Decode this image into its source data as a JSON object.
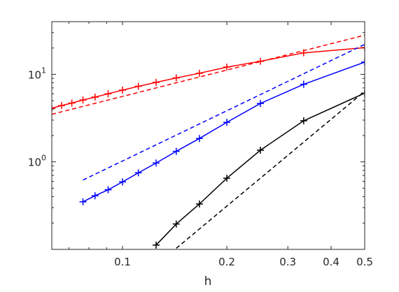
{
  "chart_data": {
    "type": "line",
    "title": "",
    "xlabel": "h",
    "ylabel": "",
    "xscale": "log",
    "yscale": "log",
    "xlim": [
      0.0625,
      0.5
    ],
    "ylim": [
      0.1,
      40
    ],
    "grid": false,
    "legend": "none",
    "x_ticks": [
      {
        "value": 0.1,
        "label": "0.1"
      },
      {
        "value": 0.2,
        "label": "0.2"
      },
      {
        "value": 0.3,
        "label": "0.3"
      },
      {
        "value": 0.4,
        "label": "0.4"
      },
      {
        "value": 0.5,
        "label": "0.5"
      }
    ],
    "y_ticks": [
      {
        "value": 1,
        "base": "10",
        "exp": "0"
      },
      {
        "value": 10,
        "base": "10",
        "exp": "1"
      }
    ],
    "series": [
      {
        "color": "#ff0000",
        "line": "solid",
        "marker": "+",
        "x": [
          0.5,
          0.3333,
          0.25,
          0.2,
          0.1667,
          0.1429,
          0.125,
          0.1111,
          0.1,
          0.0909,
          0.0833,
          0.0769,
          0.0714,
          0.0667,
          0.0625
        ],
        "y": [
          20.2,
          17.6,
          14.1,
          12.1,
          10.3,
          9.1,
          8.1,
          7.3,
          6.6,
          6.0,
          5.5,
          5.1,
          4.7,
          4.4,
          4.1
        ]
      },
      {
        "color": "#ff0000",
        "line": "dashed",
        "marker": "",
        "x": [
          0.0625,
          0.5
        ],
        "y": [
          3.5,
          28.0
        ]
      },
      {
        "color": "#0000ff",
        "line": "solid",
        "marker": "+",
        "x": [
          0.5,
          0.3333,
          0.25,
          0.2,
          0.1667,
          0.1429,
          0.125,
          0.1111,
          0.1,
          0.0909,
          0.0833,
          0.0769
        ],
        "y": [
          13.8,
          7.7,
          4.65,
          2.83,
          1.85,
          1.32,
          0.97,
          0.75,
          0.59,
          0.48,
          0.41,
          0.35
        ]
      },
      {
        "color": "#0000ff",
        "line": "dashed",
        "marker": "",
        "x": [
          0.0769,
          0.5
        ],
        "y": [
          0.62,
          22.0
        ]
      },
      {
        "color": "#000000",
        "line": "solid",
        "marker": "+",
        "x": [
          0.5,
          0.3333,
          0.25,
          0.2,
          0.1667,
          0.1429,
          0.125
        ],
        "y": [
          6.1,
          2.95,
          1.36,
          0.65,
          0.33,
          0.195,
          0.112
        ]
      },
      {
        "color": "#000000",
        "line": "dashed",
        "marker": "",
        "x": [
          0.1429,
          0.5
        ],
        "y": [
          0.103,
          6.4
        ]
      }
    ]
  }
}
